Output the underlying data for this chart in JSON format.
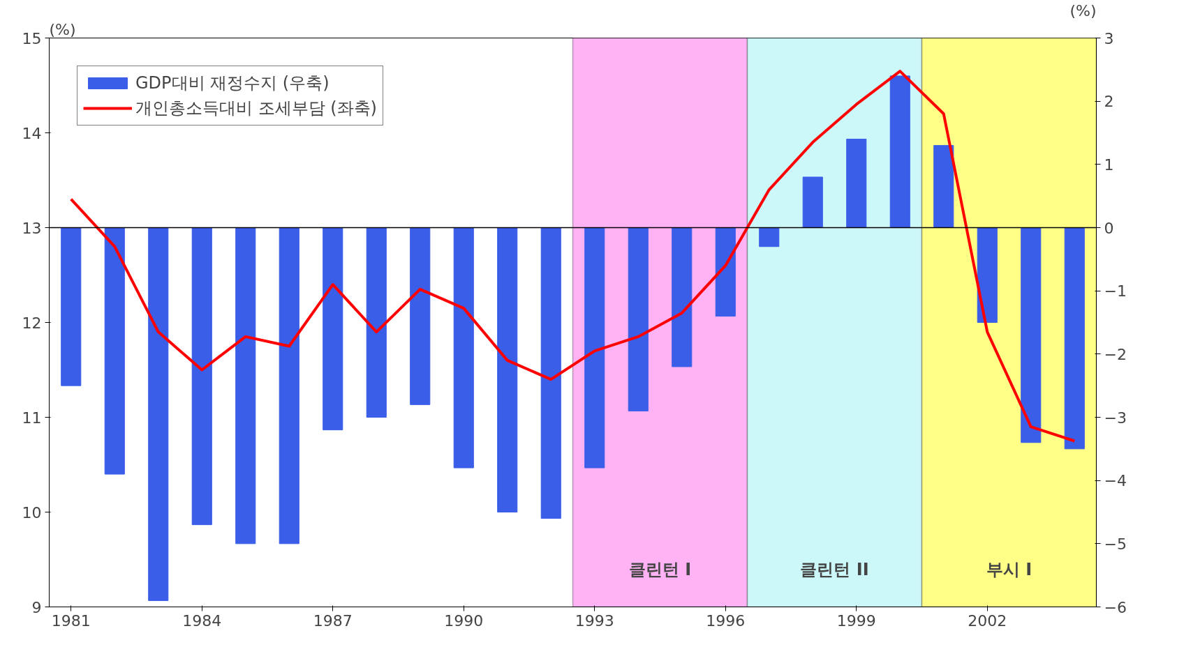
{
  "chart_data": {
    "type": "line",
    "ylabel": "(%)",
    "y2label": "(%)",
    "x": [
      1981,
      1982,
      1983,
      1984,
      1985,
      1986,
      1987,
      1988,
      1989,
      1990,
      1991,
      1992,
      1993,
      1994,
      1995,
      1996,
      1997,
      1998,
      1999,
      2000,
      2001,
      2002,
      2003,
      2004
    ],
    "series": [
      {
        "name": "GDP대비 재정수지 (우축)",
        "type": "bar",
        "axis": "y2",
        "color": "#3a5ee8",
        "values": [
          -2.5,
          -3.9,
          -5.9,
          -4.7,
          -5.0,
          -5.0,
          -3.2,
          -3.0,
          -2.8,
          -3.8,
          -4.5,
          -4.6,
          -3.8,
          -2.9,
          -2.2,
          -1.4,
          -0.3,
          0.8,
          1.4,
          2.4,
          1.3,
          -1.5,
          -3.4,
          -3.5
        ]
      },
      {
        "name": "개인총소득대비 조세부담 (좌축)",
        "color": "#ff0000",
        "values": [
          13.3,
          12.8,
          11.9,
          11.5,
          11.85,
          11.75,
          12.4,
          11.9,
          12.35,
          12.15,
          11.6,
          11.4,
          11.7,
          11.85,
          12.1,
          12.6,
          13.4,
          13.9,
          14.3,
          14.65,
          14.2,
          11.9,
          10.9,
          10.75
        ]
      }
    ],
    "xlim": [
      1980.5,
      2004.5
    ],
    "xticks": [
      1981,
      1984,
      1987,
      1990,
      1993,
      1996,
      1999,
      2002
    ],
    "ylim": [
      9,
      15
    ],
    "yticks": [
      9,
      10,
      11,
      12,
      13,
      14,
      15
    ],
    "y2lim": [
      -6,
      3
    ],
    "y2ticks": [
      -6,
      -5,
      -4,
      -3,
      -2,
      -1,
      0,
      1,
      2,
      3
    ],
    "ref_lines": [
      {
        "axis": "y2",
        "value": 0
      }
    ],
    "bands": [
      {
        "axis": "x",
        "from": 1992.5,
        "to": 1996.5,
        "label": "클린턴 I",
        "color": "#ffb3f5"
      },
      {
        "axis": "x",
        "from": 1996.5,
        "to": 2000.5,
        "label": "클린턴 II",
        "color": "#ccf8fa"
      },
      {
        "axis": "x",
        "from": 2000.5,
        "to": 2004.5,
        "label": "부시 I",
        "color": "#ffff88"
      }
    ],
    "grid": false,
    "legend": "top left"
  }
}
